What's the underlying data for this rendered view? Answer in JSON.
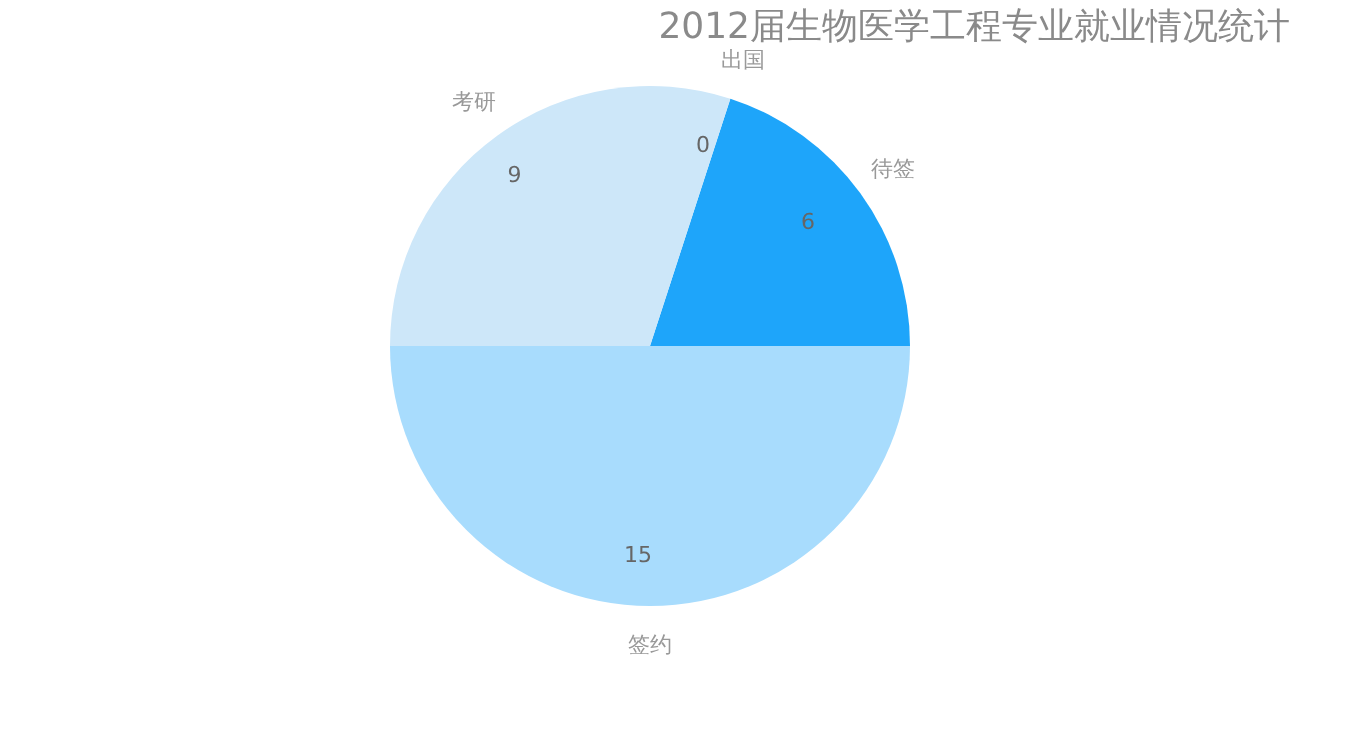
{
  "chart_data": {
    "type": "pie",
    "title": "2012届生物医学工程专业就业情况统计",
    "categories": [
      "出国",
      "待签",
      "签约",
      "考研"
    ],
    "values": [
      0,
      6,
      15,
      9
    ],
    "colors": [
      "#1a8fe0",
      "#1ea5fa",
      "#a8dcfd",
      "#cde7f9"
    ],
    "value_labels": [
      "0",
      "6",
      "15",
      "9"
    ],
    "legend": false
  }
}
